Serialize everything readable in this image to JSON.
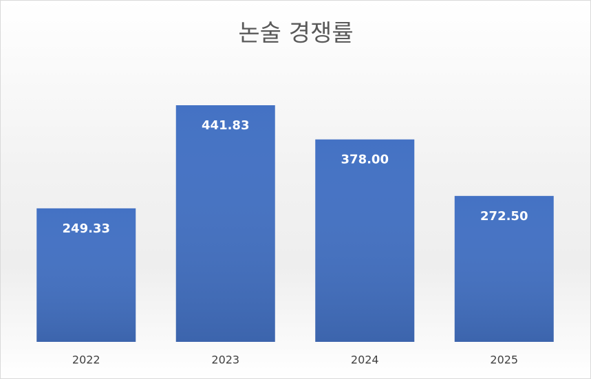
{
  "chart_data": {
    "type": "bar",
    "title": "논술 경쟁률",
    "categories": [
      "2022",
      "2023",
      "2024",
      "2025"
    ],
    "values": [
      249.33,
      441.83,
      378.0,
      272.5
    ],
    "value_labels": [
      "249.33",
      "441.83",
      "378.00",
      "272.50"
    ],
    "color": "#4472c4"
  }
}
